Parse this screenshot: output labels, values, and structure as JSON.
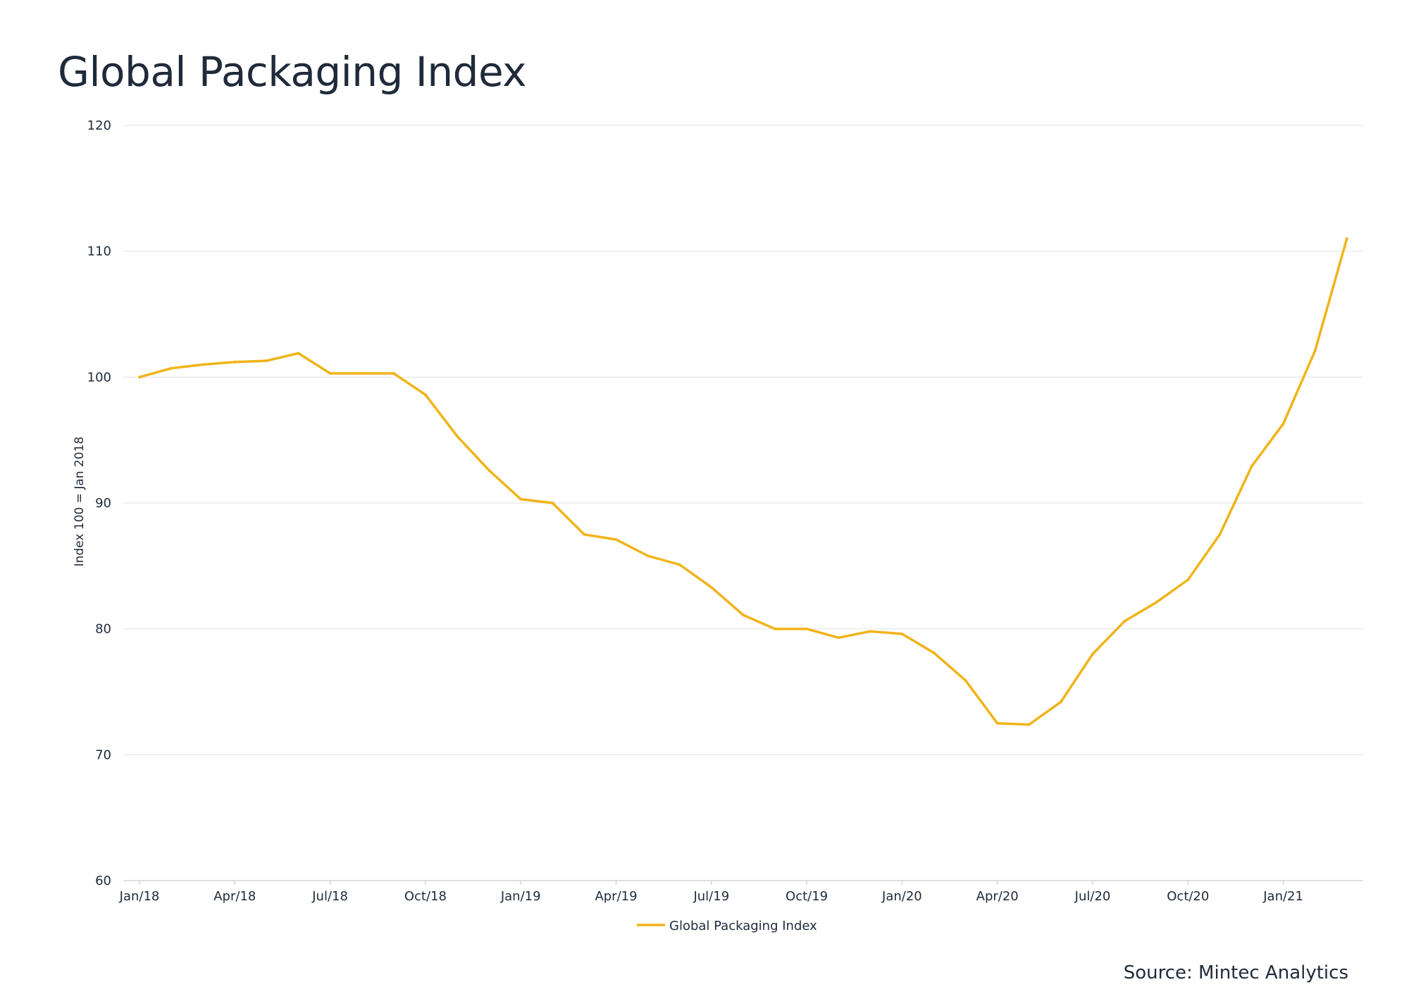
{
  "title": "Global Packaging Index",
  "source": "Source: Mintec Analytics",
  "colors": {
    "line": "#f0b419",
    "grid": "#e6e6e6",
    "text": "#1f2a3a"
  },
  "chart_data": {
    "type": "line",
    "title": "Global Packaging Index",
    "ylabel": "Index 100 = Jan 2018",
    "xlabel": "",
    "ylim": [
      60,
      120
    ],
    "yticks": [
      60,
      70,
      80,
      90,
      100,
      110,
      120
    ],
    "xtick_labels": [
      "Jan/18",
      "Apr/18",
      "Jul/18",
      "Oct/18",
      "Jan/19",
      "Apr/19",
      "Jul/19",
      "Oct/19",
      "Jan/20",
      "Apr/20",
      "Jul/20",
      "Oct/20",
      "Jan/21"
    ],
    "grid": true,
    "legend_position": "bottom-center",
    "series": [
      {
        "name": "Global Packaging Index",
        "color": "#f0b419",
        "x": [
          "Jan/18",
          "Feb/18",
          "Mar/18",
          "Apr/18",
          "May/18",
          "Jun/18",
          "Jul/18",
          "Aug/18",
          "Sep/18",
          "Oct/18",
          "Nov/18",
          "Dec/18",
          "Jan/19",
          "Feb/19",
          "Mar/19",
          "Apr/19",
          "May/19",
          "Jun/19",
          "Jul/19",
          "Aug/19",
          "Sep/19",
          "Oct/19",
          "Nov/19",
          "Dec/19",
          "Jan/20",
          "Feb/20",
          "Mar/20",
          "Apr/20",
          "May/20",
          "Jun/20",
          "Jul/20",
          "Aug/20",
          "Sep/20",
          "Oct/20",
          "Nov/20",
          "Dec/20",
          "Jan/21",
          "Feb/21",
          "Mar/21"
        ],
        "values": [
          100.0,
          100.7,
          101.0,
          101.2,
          101.3,
          101.9,
          100.3,
          100.3,
          100.3,
          98.6,
          95.3,
          92.6,
          90.3,
          90.0,
          87.5,
          87.1,
          85.8,
          85.1,
          83.3,
          81.1,
          80.0,
          80.0,
          79.3,
          79.8,
          79.6,
          78.1,
          75.9,
          72.5,
          72.4,
          74.2,
          78.0,
          80.6,
          82.1,
          83.9,
          87.5,
          92.9,
          96.3,
          102.1,
          111.0
        ]
      }
    ]
  },
  "legend": {
    "label": "Global Packaging Index"
  }
}
